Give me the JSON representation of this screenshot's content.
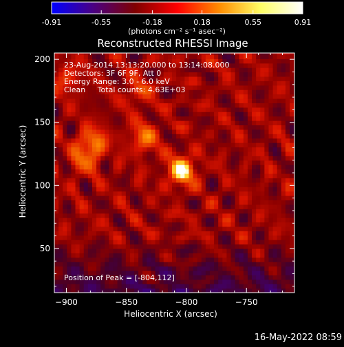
{
  "colorbar": {
    "tick_labels": [
      "-0.91",
      "-0.55",
      "-0.18",
      "0.18",
      "0.55",
      "0.91"
    ],
    "tick_values": [
      -0.91,
      -0.55,
      -0.18,
      0.18,
      0.55,
      0.91
    ],
    "range": [
      -0.91,
      0.91
    ],
    "units": "(photons cm⁻² s⁻¹ asec⁻²)",
    "colors": [
      "#0000ff",
      "#4b0082",
      "#800000",
      "#ff0000",
      "#ff8c00",
      "#ffff66",
      "#ffffff"
    ]
  },
  "image": {
    "title": "Reconstructed RHESSI Image",
    "info_lines": [
      "23-Aug-2014 13:13:20.000 to 13:14:08.000",
      "Detectors: 3F 6F 9F, Att 0",
      "Energy Range: 3.0 - 6.0 keV",
      "Clean     Total counts: 4.63E+03"
    ],
    "peak_text": "Position of Peak = [-804,112]",
    "footer_date": "16-May-2022 08:59"
  },
  "chart_data": {
    "type": "heatmap",
    "title": "Reconstructed RHESSI Image",
    "xlabel": "Heliocentric X (arcsec)",
    "ylabel": "Heliocentric Y (arcsec)",
    "xlim": [
      -910,
      -710
    ],
    "ylim": [
      15,
      205
    ],
    "x_ticks": [
      -900,
      -850,
      -800,
      -750
    ],
    "y_ticks": [
      50,
      100,
      150,
      200
    ],
    "x_tick_labels": [
      "−900",
      "−850",
      "−800",
      "−750"
    ],
    "y_tick_labels": [
      "50",
      "100",
      "150",
      "200"
    ],
    "peak": {
      "x": -804,
      "y": 112,
      "value": 0.91
    },
    "secondary_sources": [
      {
        "x": -878,
        "y": 134,
        "value": 0.45
      },
      {
        "x": -835,
        "y": 138,
        "value": 0.4
      },
      {
        "x": -886,
        "y": 120,
        "value": 0.3
      },
      {
        "x": -840,
        "y": 175,
        "value": 0.25
      },
      {
        "x": -900,
        "y": 185,
        "value": 0.25
      }
    ],
    "background_range": [
      -0.4,
      0.25
    ],
    "grid": false
  }
}
